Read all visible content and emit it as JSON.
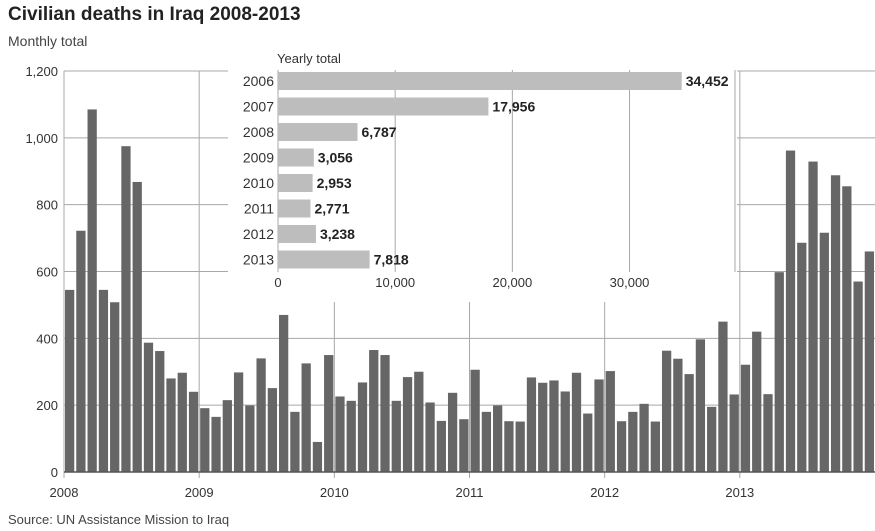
{
  "title": "Civilian deaths in Iraq 2008-2013",
  "subtitle": "Monthly total",
  "source": "Source: UN Assistance Mission to Iraq",
  "colors": {
    "monthly_bar": "#666666",
    "yearly_bar": "#bdbdbd",
    "grid": "#a8a8a8",
    "text": "#333333"
  },
  "chart_data": [
    {
      "type": "bar",
      "title": "Monthly total",
      "xlabel": "",
      "ylabel": "",
      "ylim": [
        0,
        1200
      ],
      "yticks": [
        "0",
        "200",
        "400",
        "600",
        "800",
        "1,000",
        "1,200"
      ],
      "xticks": [
        "2008",
        "2009",
        "2010",
        "2011",
        "2012",
        "2013"
      ],
      "grid": true,
      "series": [
        {
          "values": [
            545,
            722,
            1085,
            545,
            508,
            975,
            868,
            387,
            362,
            280,
            297,
            240,
            191,
            165,
            215,
            298,
            199,
            340,
            251,
            470,
            180,
            325,
            90,
            350,
            226,
            213,
            268,
            365,
            350,
            213,
            284,
            300,
            208,
            153,
            237,
            158,
            306,
            180,
            199,
            152,
            151,
            283,
            267,
            274,
            241,
            297,
            175,
            277,
            302,
            152,
            180,
            204,
            151,
            363,
            339,
            293,
            397,
            195,
            450,
            232,
            321,
            420,
            233,
            598,
            962,
            686,
            929,
            716,
            888,
            855,
            570,
            660
          ]
        }
      ]
    },
    {
      "type": "bar",
      "orientation": "horizontal",
      "title": "Yearly total",
      "categories": [
        "2006",
        "2007",
        "2008",
        "2009",
        "2010",
        "2011",
        "2012",
        "2013"
      ],
      "values": [
        34452,
        17956,
        6787,
        3056,
        2953,
        2771,
        3238,
        7818
      ],
      "value_labels": [
        "34,452",
        "17,956",
        "6,787",
        "3,056",
        "2,953",
        "2,771",
        "3,238",
        "7,818"
      ],
      "xlim": [
        0,
        39000
      ],
      "xticks": [
        "0",
        "10,000",
        "20,000",
        "30,000"
      ],
      "grid": true
    }
  ]
}
